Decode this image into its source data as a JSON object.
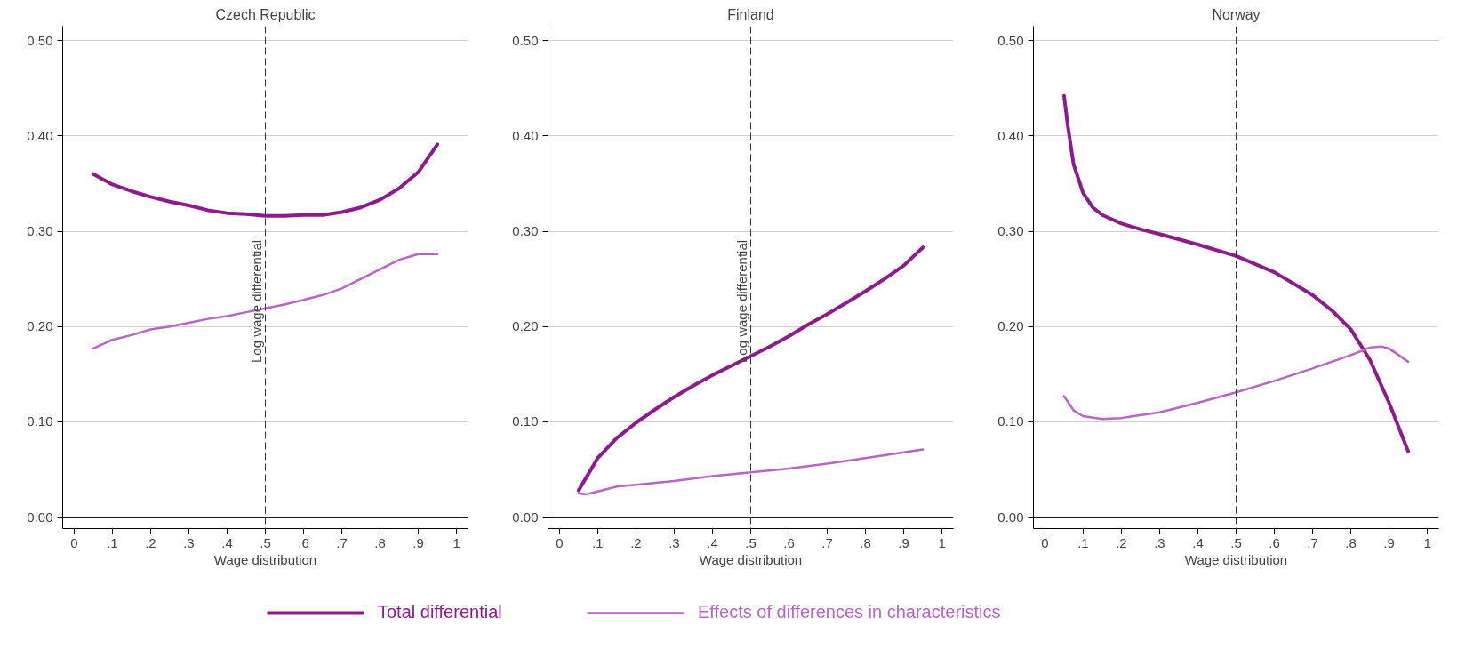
{
  "chart_data": [
    {
      "type": "line",
      "title": "Czech Republic",
      "xlabel": "Wage distribution",
      "xlim": [
        -0.03,
        1.03
      ],
      "ylim": [
        -0.012,
        0.515
      ],
      "xticks": [
        {
          "value": 0,
          "label": "0"
        },
        {
          "value": 0.1,
          "label": ".1"
        },
        {
          "value": 0.2,
          "label": ".2"
        },
        {
          "value": 0.3,
          "label": ".3"
        },
        {
          "value": 0.4,
          "label": ".4"
        },
        {
          "value": 0.5,
          "label": ".5"
        },
        {
          "value": 0.6,
          "label": ".6"
        },
        {
          "value": 0.7,
          "label": ".7"
        },
        {
          "value": 0.8,
          "label": ".8"
        },
        {
          "value": 0.9,
          "label": ".9"
        },
        {
          "value": 1,
          "label": "1"
        }
      ],
      "yticks": [
        {
          "value": 0,
          "label": "0.00"
        },
        {
          "value": 0.1,
          "label": "0.10"
        },
        {
          "value": 0.2,
          "label": "0.20"
        },
        {
          "value": 0.3,
          "label": "0.30"
        },
        {
          "value": 0.4,
          "label": "0.40"
        },
        {
          "value": 0.5,
          "label": "0.50"
        }
      ],
      "grid": "y",
      "ref_lines": [
        {
          "axis": "x",
          "value": 0.5,
          "label": "Log wage differential",
          "line_style": "dashed"
        }
      ],
      "series": [
        {
          "color": "#8e1b8e",
          "x": [
            0.05,
            0.1,
            0.15,
            0.2,
            0.25,
            0.3,
            0.35,
            0.4,
            0.45,
            0.5,
            0.55,
            0.6,
            0.65,
            0.7,
            0.75,
            0.8,
            0.85,
            0.9,
            0.95
          ],
          "values": [
            0.36,
            0.349,
            0.342,
            0.336,
            0.331,
            0.327,
            0.322,
            0.319,
            0.318,
            0.316,
            0.316,
            0.317,
            0.317,
            0.32,
            0.325,
            0.333,
            0.345,
            0.362,
            0.391
          ]
        },
        {
          "color": "#b866c4",
          "x": [
            0.05,
            0.1,
            0.15,
            0.2,
            0.25,
            0.3,
            0.35,
            0.4,
            0.45,
            0.5,
            0.55,
            0.6,
            0.65,
            0.7,
            0.75,
            0.8,
            0.85,
            0.9,
            0.95
          ],
          "values": [
            0.177,
            0.186,
            0.191,
            0.197,
            0.2,
            0.204,
            0.208,
            0.211,
            0.215,
            0.219,
            0.223,
            0.228,
            0.233,
            0.24,
            0.25,
            0.26,
            0.27,
            0.276,
            0.276
          ]
        }
      ]
    },
    {
      "type": "line",
      "title": "Finland",
      "xlabel": "Wage distribution",
      "xlim": [
        -0.03,
        1.03
      ],
      "ylim": [
        -0.012,
        0.515
      ],
      "xticks": [
        {
          "value": 0,
          "label": "0"
        },
        {
          "value": 0.1,
          "label": ".1"
        },
        {
          "value": 0.2,
          "label": ".2"
        },
        {
          "value": 0.3,
          "label": ".3"
        },
        {
          "value": 0.4,
          "label": ".4"
        },
        {
          "value": 0.5,
          "label": ".5"
        },
        {
          "value": 0.6,
          "label": ".6"
        },
        {
          "value": 0.7,
          "label": ".7"
        },
        {
          "value": 0.8,
          "label": ".8"
        },
        {
          "value": 0.9,
          "label": ".9"
        },
        {
          "value": 1,
          "label": "1"
        }
      ],
      "yticks": [
        {
          "value": 0,
          "label": "0.00"
        },
        {
          "value": 0.1,
          "label": "0.10"
        },
        {
          "value": 0.2,
          "label": "0.20"
        },
        {
          "value": 0.3,
          "label": "0.30"
        },
        {
          "value": 0.4,
          "label": "0.40"
        },
        {
          "value": 0.5,
          "label": "0.50"
        }
      ],
      "grid": "y",
      "legend": "bottom",
      "ref_lines": [
        {
          "axis": "x",
          "value": 0.5,
          "label": "Log wage differential",
          "line_style": "dashed"
        }
      ],
      "series": [
        {
          "name": "Total differential",
          "color": "#8e1b8e",
          "x": [
            0.05,
            0.075,
            0.1,
            0.15,
            0.2,
            0.25,
            0.3,
            0.35,
            0.4,
            0.45,
            0.5,
            0.55,
            0.6,
            0.65,
            0.7,
            0.75,
            0.8,
            0.85,
            0.9,
            0.95
          ],
          "values": [
            0.028,
            0.045,
            0.062,
            0.083,
            0.099,
            0.113,
            0.126,
            0.138,
            0.149,
            0.159,
            0.169,
            0.179,
            0.19,
            0.202,
            0.213,
            0.225,
            0.237,
            0.25,
            0.264,
            0.283
          ]
        },
        {
          "name": "Effects of differences in characteristics",
          "color": "#b866c4",
          "x": [
            0.05,
            0.07,
            0.1,
            0.15,
            0.2,
            0.3,
            0.4,
            0.5,
            0.6,
            0.7,
            0.8,
            0.9,
            0.95
          ],
          "values": [
            0.025,
            0.024,
            0.027,
            0.032,
            0.034,
            0.038,
            0.043,
            0.047,
            0.051,
            0.056,
            0.062,
            0.068,
            0.071
          ]
        }
      ]
    },
    {
      "type": "line",
      "title": "Norway",
      "xlabel": "Wage distribution",
      "xlim": [
        -0.03,
        1.03
      ],
      "ylim": [
        -0.012,
        0.515
      ],
      "xticks": [
        {
          "value": 0,
          "label": "0"
        },
        {
          "value": 0.1,
          "label": ".1"
        },
        {
          "value": 0.2,
          "label": ".2"
        },
        {
          "value": 0.3,
          "label": ".3"
        },
        {
          "value": 0.4,
          "label": ".4"
        },
        {
          "value": 0.5,
          "label": ".5"
        },
        {
          "value": 0.6,
          "label": ".6"
        },
        {
          "value": 0.7,
          "label": ".7"
        },
        {
          "value": 0.8,
          "label": ".8"
        },
        {
          "value": 0.9,
          "label": ".9"
        },
        {
          "value": 1,
          "label": "1"
        }
      ],
      "yticks": [
        {
          "value": 0,
          "label": "0.00"
        },
        {
          "value": 0.1,
          "label": "0.10"
        },
        {
          "value": 0.2,
          "label": "0.20"
        },
        {
          "value": 0.3,
          "label": "0.30"
        },
        {
          "value": 0.4,
          "label": "0.40"
        },
        {
          "value": 0.5,
          "label": "0.50"
        }
      ],
      "grid": "y",
      "ref_lines": [
        {
          "axis": "x",
          "value": 0.5,
          "line_style": "dashed"
        }
      ],
      "series": [
        {
          "color": "#8e1b8e",
          "x": [
            0.05,
            0.06,
            0.075,
            0.1,
            0.125,
            0.15,
            0.2,
            0.25,
            0.3,
            0.4,
            0.5,
            0.6,
            0.7,
            0.75,
            0.8,
            0.85,
            0.9,
            0.95
          ],
          "values": [
            0.442,
            0.41,
            0.37,
            0.34,
            0.325,
            0.317,
            0.308,
            0.302,
            0.297,
            0.286,
            0.274,
            0.257,
            0.233,
            0.217,
            0.197,
            0.165,
            0.12,
            0.069
          ]
        },
        {
          "color": "#b866c4",
          "x": [
            0.05,
            0.075,
            0.1,
            0.15,
            0.2,
            0.3,
            0.4,
            0.5,
            0.6,
            0.7,
            0.8,
            0.85,
            0.88,
            0.9,
            0.95
          ],
          "values": [
            0.127,
            0.112,
            0.106,
            0.103,
            0.104,
            0.11,
            0.12,
            0.131,
            0.143,
            0.156,
            0.17,
            0.178,
            0.179,
            0.177,
            0.163
          ]
        }
      ]
    }
  ]
}
